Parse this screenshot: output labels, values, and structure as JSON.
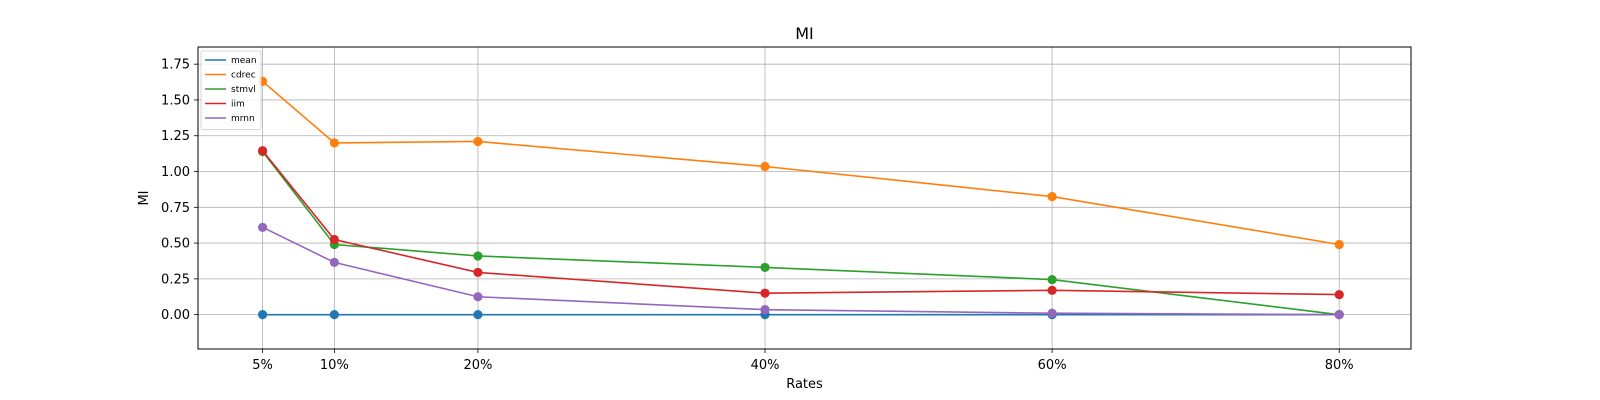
{
  "chart_data": {
    "type": "line",
    "title": "MI",
    "xlabel": "Rates",
    "ylabel": "MI",
    "x": [
      5,
      10,
      20,
      40,
      60,
      80
    ],
    "x_tick_labels": [
      "5%",
      "10%",
      "20%",
      "40%",
      "60%",
      "80%"
    ],
    "xlim": [
      0.5,
      85
    ],
    "ylim": [
      -0.24,
      1.87
    ],
    "y_ticks": [
      0.0,
      0.25,
      0.5,
      0.75,
      1.0,
      1.25,
      1.5,
      1.75
    ],
    "y_tick_labels": [
      "0.00",
      "0.25",
      "0.50",
      "0.75",
      "1.00",
      "1.25",
      "1.50",
      "1.75"
    ],
    "grid": true,
    "legend_position": "top-left",
    "series": [
      {
        "name": "mean",
        "color": "#1f77b4",
        "values": [
          0.0,
          0.0,
          0.0,
          0.0,
          0.0,
          0.0
        ]
      },
      {
        "name": "cdrec",
        "color": "#ff7f0e",
        "values": [
          1.63,
          1.2,
          1.21,
          1.035,
          0.825,
          0.49
        ]
      },
      {
        "name": "stmvl",
        "color": "#2ca02c",
        "values": [
          1.14,
          0.49,
          0.41,
          0.33,
          0.245,
          0.0
        ]
      },
      {
        "name": "iim",
        "color": "#d62728",
        "values": [
          1.145,
          0.525,
          0.295,
          0.15,
          0.17,
          0.14
        ]
      },
      {
        "name": "mrnn",
        "color": "#9467bd",
        "values": [
          0.61,
          0.365,
          0.125,
          0.035,
          0.01,
          0.0
        ]
      }
    ]
  }
}
